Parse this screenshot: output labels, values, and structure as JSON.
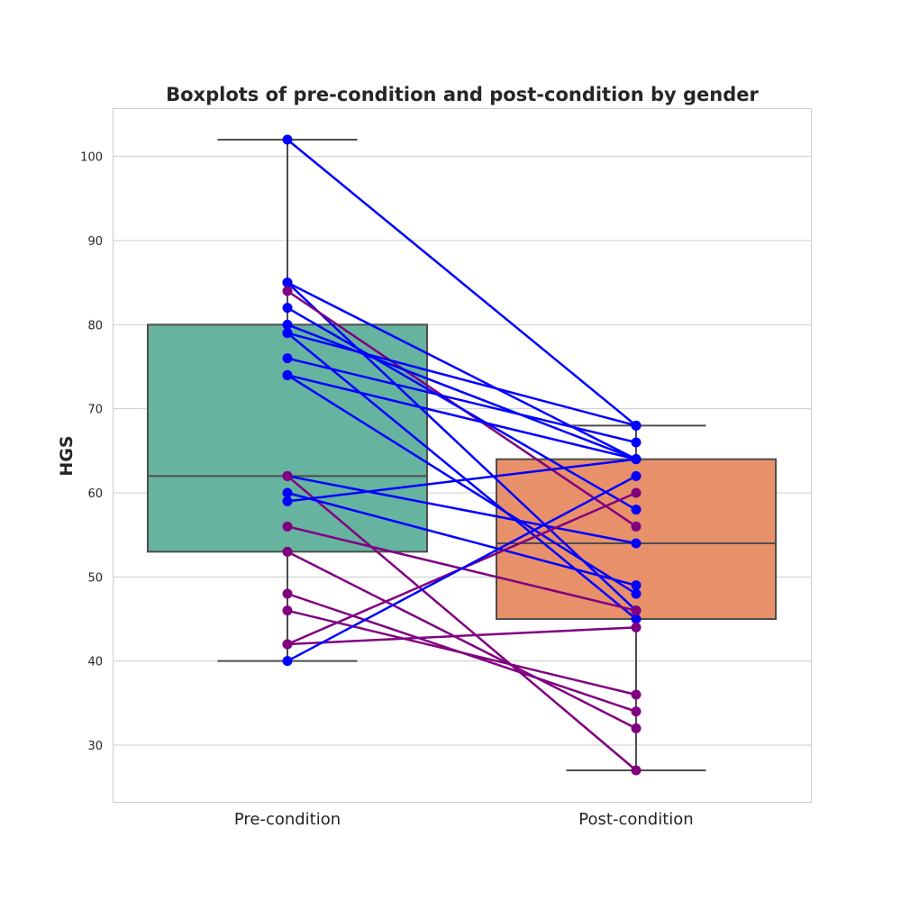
{
  "chart_data": {
    "type": "box",
    "title": "Boxplots of pre-condition and post-condition by gender",
    "xlabel": "",
    "ylabel": "HGS",
    "ylim": [
      23.25,
      105.75
    ],
    "yticks": [
      30,
      40,
      50,
      60,
      70,
      80,
      90,
      100
    ],
    "categories": [
      "Pre-condition",
      "Post-condition"
    ],
    "grid": true,
    "box_colors": [
      "#66b3a0",
      "#e8906a"
    ],
    "boxes": [
      {
        "category": "Pre-condition",
        "whisker_low": 40,
        "q1": 53,
        "median": 62,
        "q3": 80,
        "whisker_high": 102
      },
      {
        "category": "Post-condition",
        "whisker_low": 27,
        "q1": 45,
        "median": 54,
        "q3": 64,
        "whisker_high": 68
      }
    ],
    "series": [
      {
        "color": "#0000ff",
        "values": [
          102,
          68
        ]
      },
      {
        "color": "#0000ff",
        "values": [
          85,
          64
        ]
      },
      {
        "color": "#0000ff",
        "values": [
          85,
          46
        ]
      },
      {
        "color": "#800080",
        "values": [
          84,
          56
        ]
      },
      {
        "color": "#0000ff",
        "values": [
          82,
          58
        ]
      },
      {
        "color": "#0000ff",
        "values": [
          80,
          64
        ]
      },
      {
        "color": "#0000ff",
        "values": [
          79,
          45
        ]
      },
      {
        "color": "#0000ff",
        "values": [
          79,
          68
        ]
      },
      {
        "color": "#0000ff",
        "values": [
          76,
          66
        ]
      },
      {
        "color": "#0000ff",
        "values": [
          74,
          64
        ]
      },
      {
        "color": "#0000ff",
        "values": [
          74,
          48
        ]
      },
      {
        "color": "#0000ff",
        "values": [
          62,
          54
        ]
      },
      {
        "color": "#800080",
        "values": [
          62,
          27
        ]
      },
      {
        "color": "#0000ff",
        "values": [
          60,
          49
        ]
      },
      {
        "color": "#0000ff",
        "values": [
          59,
          64
        ]
      },
      {
        "color": "#800080",
        "values": [
          56,
          46
        ]
      },
      {
        "color": "#800080",
        "values": [
          53,
          32
        ]
      },
      {
        "color": "#800080",
        "values": [
          48,
          34
        ]
      },
      {
        "color": "#800080",
        "values": [
          46,
          36
        ]
      },
      {
        "color": "#800080",
        "values": [
          42,
          60
        ]
      },
      {
        "color": "#800080",
        "values": [
          42,
          44
        ]
      },
      {
        "color": "#0000ff",
        "values": [
          40,
          62
        ]
      }
    ]
  }
}
